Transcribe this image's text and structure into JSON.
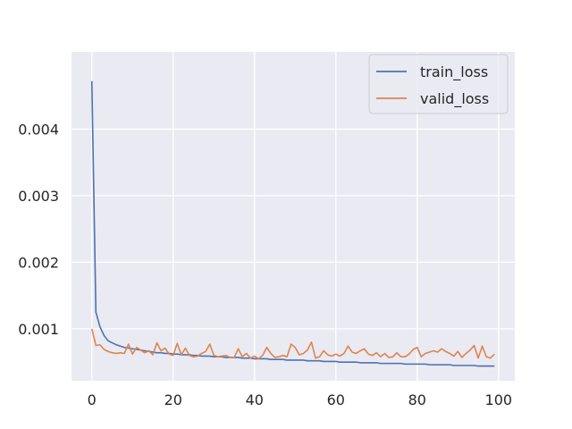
{
  "chart_data": {
    "type": "line",
    "title": "",
    "xlabel": "",
    "ylabel": "",
    "xlim": [
      -5,
      104
    ],
    "ylim": [
      0.00022,
      0.00516
    ],
    "grid": true,
    "legend_position": "top-right",
    "x_ticks": [
      0,
      20,
      40,
      60,
      80,
      100
    ],
    "x_tick_labels": [
      "0",
      "20",
      "40",
      "60",
      "80",
      "100"
    ],
    "y_ticks": [
      0.001,
      0.002,
      0.003,
      0.004
    ],
    "y_tick_labels": [
      "0.001",
      "0.002",
      "0.003",
      "0.004"
    ],
    "colors": {
      "background": "#eaeaf2",
      "grid": "#ffffff",
      "train_loss": "#4c72b0",
      "valid_loss": "#dd8452"
    },
    "series": [
      {
        "name": "train_loss",
        "x": [
          0,
          1,
          2,
          3,
          4,
          5,
          6,
          7,
          8,
          9,
          10,
          11,
          12,
          13,
          14,
          15,
          16,
          17,
          18,
          19,
          20,
          21,
          22,
          23,
          24,
          25,
          26,
          27,
          28,
          29,
          30,
          31,
          32,
          33,
          34,
          35,
          36,
          37,
          38,
          39,
          40,
          41,
          42,
          43,
          44,
          45,
          46,
          47,
          48,
          49,
          50,
          51,
          52,
          53,
          54,
          55,
          56,
          57,
          58,
          59,
          60,
          61,
          62,
          63,
          64,
          65,
          66,
          67,
          68,
          69,
          70,
          71,
          72,
          73,
          74,
          75,
          76,
          77,
          78,
          79,
          80,
          81,
          82,
          83,
          84,
          85,
          86,
          87,
          88,
          89,
          90,
          91,
          92,
          93,
          94,
          95,
          96,
          97,
          98,
          99
        ],
        "values": [
          0.00472,
          0.00125,
          0.00103,
          0.0009,
          0.00082,
          0.00079,
          0.00076,
          0.00074,
          0.00072,
          0.00071,
          0.0007,
          0.00069,
          0.00068,
          0.00067,
          0.00066,
          0.00065,
          0.00064,
          0.00064,
          0.00063,
          0.00063,
          0.00062,
          0.00062,
          0.00061,
          0.00061,
          0.00061,
          0.0006,
          0.0006,
          0.00059,
          0.00059,
          0.00059,
          0.00058,
          0.00058,
          0.00058,
          0.00057,
          0.00057,
          0.00057,
          0.00057,
          0.00056,
          0.00056,
          0.00056,
          0.00055,
          0.00055,
          0.00055,
          0.00055,
          0.00054,
          0.00054,
          0.00054,
          0.00054,
          0.00053,
          0.00053,
          0.00053,
          0.00053,
          0.00053,
          0.00052,
          0.00052,
          0.00052,
          0.00052,
          0.00051,
          0.00051,
          0.00051,
          0.00051,
          0.0005,
          0.0005,
          0.0005,
          0.0005,
          0.0005,
          0.00049,
          0.00049,
          0.00049,
          0.00049,
          0.00049,
          0.00048,
          0.00048,
          0.00048,
          0.00048,
          0.00048,
          0.00048,
          0.00047,
          0.00047,
          0.00047,
          0.00047,
          0.00047,
          0.00047,
          0.00046,
          0.00046,
          0.00046,
          0.00046,
          0.00046,
          0.00046,
          0.00045,
          0.00045,
          0.00045,
          0.00045,
          0.00045,
          0.00045,
          0.00044,
          0.00044,
          0.00044,
          0.00044,
          0.00044
        ]
      },
      {
        "name": "valid_loss",
        "x": [
          0,
          1,
          2,
          3,
          4,
          5,
          6,
          7,
          8,
          9,
          10,
          11,
          12,
          13,
          14,
          15,
          16,
          17,
          18,
          19,
          20,
          21,
          22,
          23,
          24,
          25,
          26,
          27,
          28,
          29,
          30,
          31,
          32,
          33,
          34,
          35,
          36,
          37,
          38,
          39,
          40,
          41,
          42,
          43,
          44,
          45,
          46,
          47,
          48,
          49,
          50,
          51,
          52,
          53,
          54,
          55,
          56,
          57,
          58,
          59,
          60,
          61,
          62,
          63,
          64,
          65,
          66,
          67,
          68,
          69,
          70,
          71,
          72,
          73,
          74,
          75,
          76,
          77,
          78,
          79,
          80,
          81,
          82,
          83,
          84,
          85,
          86,
          87,
          88,
          89,
          90,
          91,
          92,
          93,
          94,
          95,
          96,
          97,
          98,
          99
        ],
        "values": [
          0.001,
          0.00075,
          0.00076,
          0.00069,
          0.00066,
          0.00064,
          0.00063,
          0.00064,
          0.00063,
          0.00077,
          0.00062,
          0.00072,
          0.00068,
          0.00064,
          0.00067,
          0.00061,
          0.00079,
          0.00067,
          0.00071,
          0.00062,
          0.0006,
          0.00078,
          0.00061,
          0.00071,
          0.0006,
          0.00058,
          0.00059,
          0.00063,
          0.00066,
          0.00077,
          0.0006,
          0.00058,
          0.00059,
          0.0006,
          0.00057,
          0.00057,
          0.0007,
          0.00058,
          0.00063,
          0.00056,
          0.00059,
          0.00055,
          0.0006,
          0.00072,
          0.00063,
          0.00057,
          0.00058,
          0.0006,
          0.00058,
          0.00077,
          0.00072,
          0.00061,
          0.00063,
          0.00068,
          0.0008,
          0.00056,
          0.00058,
          0.00067,
          0.00061,
          0.00059,
          0.00062,
          0.00059,
          0.00063,
          0.00074,
          0.00065,
          0.00063,
          0.00067,
          0.0007,
          0.00062,
          0.0006,
          0.00064,
          0.00058,
          0.00063,
          0.00057,
          0.00058,
          0.00064,
          0.00058,
          0.00058,
          0.00062,
          0.00069,
          0.00072,
          0.00058,
          0.00063,
          0.00065,
          0.00067,
          0.00065,
          0.0007,
          0.00066,
          0.00063,
          0.00059,
          0.00066,
          0.00057,
          0.00063,
          0.00068,
          0.00075,
          0.00056,
          0.00074,
          0.00058,
          0.00056,
          0.00062
        ]
      }
    ]
  }
}
